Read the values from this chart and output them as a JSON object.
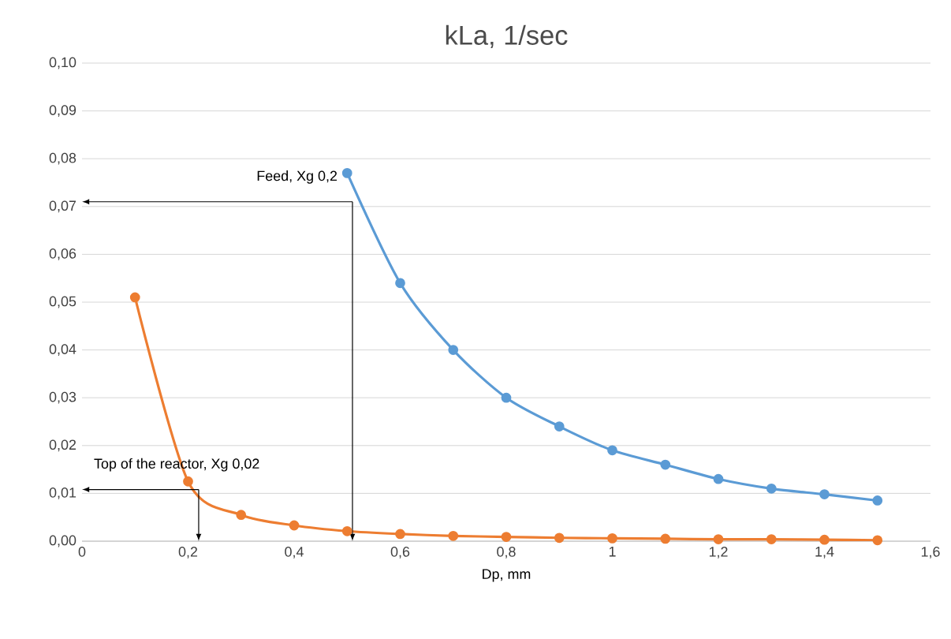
{
  "chart_data": {
    "type": "line",
    "title": "kLa, 1/sec",
    "xlabel": "Dp, mm",
    "xlim": [
      0,
      1.6
    ],
    "xticks": [
      0,
      {
        "value": 0.2,
        "label": "0,2"
      },
      {
        "value": 0.4,
        "label": "0,4"
      },
      {
        "value": 0.6,
        "label": "0,6"
      },
      {
        "value": 0.8,
        "label": "0,8"
      },
      1,
      {
        "value": 1.2,
        "label": "1,2"
      },
      {
        "value": 1.4,
        "label": "1,4"
      },
      {
        "value": 1.6,
        "label": "1,6"
      }
    ],
    "ylim": [
      0,
      0.1
    ],
    "yticks": [
      {
        "value": 0,
        "label": "0,00"
      },
      {
        "value": 0.01,
        "label": "0,01"
      },
      {
        "value": 0.02,
        "label": "0,02"
      },
      {
        "value": 0.03,
        "label": "0,03"
      },
      {
        "value": 0.04,
        "label": "0,04"
      },
      {
        "value": 0.05,
        "label": "0,05"
      },
      {
        "value": 0.06,
        "label": "0,06"
      },
      {
        "value": 0.07,
        "label": "0,07"
      },
      {
        "value": 0.08,
        "label": "0,08"
      },
      {
        "value": 0.09,
        "label": "0,09"
      },
      {
        "value": 0.1,
        "label": "0,10"
      }
    ],
    "grid": "y",
    "marker": "circle",
    "series": [
      {
        "color": "#5b9bd5",
        "x": [
          0.5,
          0.6,
          0.7,
          0.8,
          0.9,
          1.0,
          1.1,
          1.2,
          1.3,
          1.4,
          1.5
        ],
        "values": [
          0.077,
          0.054,
          0.04,
          0.03,
          0.024,
          0.019,
          0.016,
          0.013,
          0.011,
          0.0098,
          0.0085
        ]
      },
      {
        "color": "#ed7d31",
        "x": [
          0.1,
          0.2,
          0.3,
          0.4,
          0.5,
          0.6,
          0.7,
          0.8,
          0.9,
          1.0,
          1.1,
          1.2,
          1.3,
          1.4,
          1.5
        ],
        "values": [
          0.051,
          0.0125,
          0.0055,
          0.0033,
          0.0021,
          0.0015,
          0.0011,
          0.0009,
          0.0007,
          0.0006,
          0.0005,
          0.0004,
          0.0004,
          0.0003,
          0.0002
        ]
      }
    ],
    "annotations": [
      {
        "text": "Feed, Xg 0,2",
        "x": 0.51,
        "y": 0.071
      },
      {
        "text": "Top of the reactor, Xg 0,02",
        "x": 0.22,
        "y": 0.0108
      }
    ]
  }
}
